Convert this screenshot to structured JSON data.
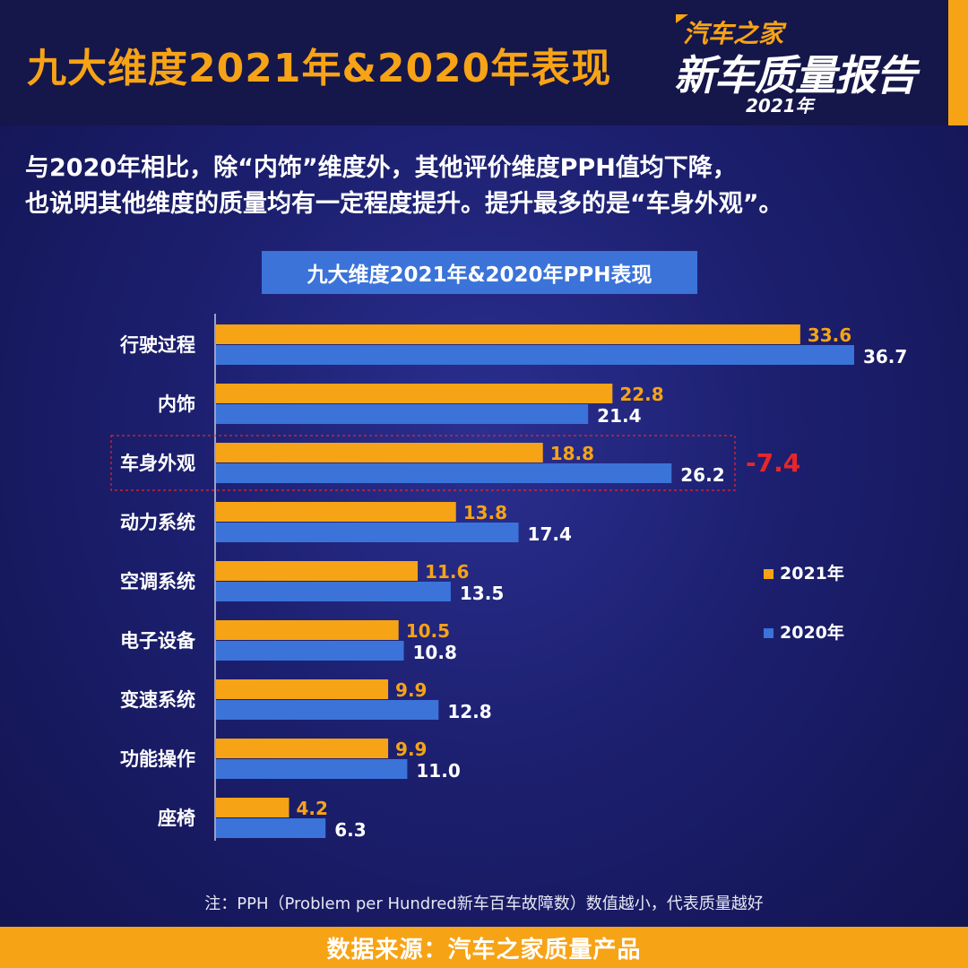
{
  "header": {
    "title": "九大维度2021年&2020年表现",
    "logo_line1": "汽车之家",
    "logo_line2": "新车质量报告",
    "logo_year": "2021年"
  },
  "summary": {
    "line1": "与2020年相比，除“内饰”维度外，其他评价维度PPH值均下降，",
    "line2": "也说明其他维度的质量均有一定程度提升。提升最多的是“车身外观”。"
  },
  "chart_title": "九大维度2021年&2020年PPH表现",
  "chart_data": {
    "type": "bar",
    "orientation": "horizontal",
    "categories": [
      "行驶过程",
      "内饰",
      "车身外观",
      "动力系统",
      "空调系统",
      "电子设备",
      "变速系统",
      "功能操作",
      "座椅"
    ],
    "series": [
      {
        "name": "2021年",
        "color": "#f6a316",
        "values": [
          33.6,
          22.8,
          18.8,
          13.8,
          11.6,
          10.5,
          9.9,
          9.9,
          4.2
        ]
      },
      {
        "name": "2020年",
        "color": "#3b73d9",
        "values": [
          36.7,
          21.4,
          26.2,
          17.4,
          13.5,
          10.8,
          12.8,
          11.0,
          6.3
        ]
      }
    ],
    "value_labels_2021": [
      "33.6",
      "22.8",
      "18.8",
      "13.8",
      "11.6",
      "10.5",
      "9.9",
      "9.9",
      "4.2"
    ],
    "value_labels_2020": [
      "36.7",
      "21.4",
      "26.2",
      "17.4",
      "13.5",
      "10.8",
      "12.8",
      "11.0",
      "6.3"
    ],
    "highlight": {
      "category": "车身外观",
      "annotation": "-7.4",
      "color": "#e8262a"
    },
    "xlim": [
      0,
      40
    ],
    "legend_placement": "right",
    "grid": false
  },
  "note": "注：PPH（Problem per Hundred新车百车故障数）数值越小，代表质量越好",
  "footer": "数据来源：汽车之家质量产品"
}
